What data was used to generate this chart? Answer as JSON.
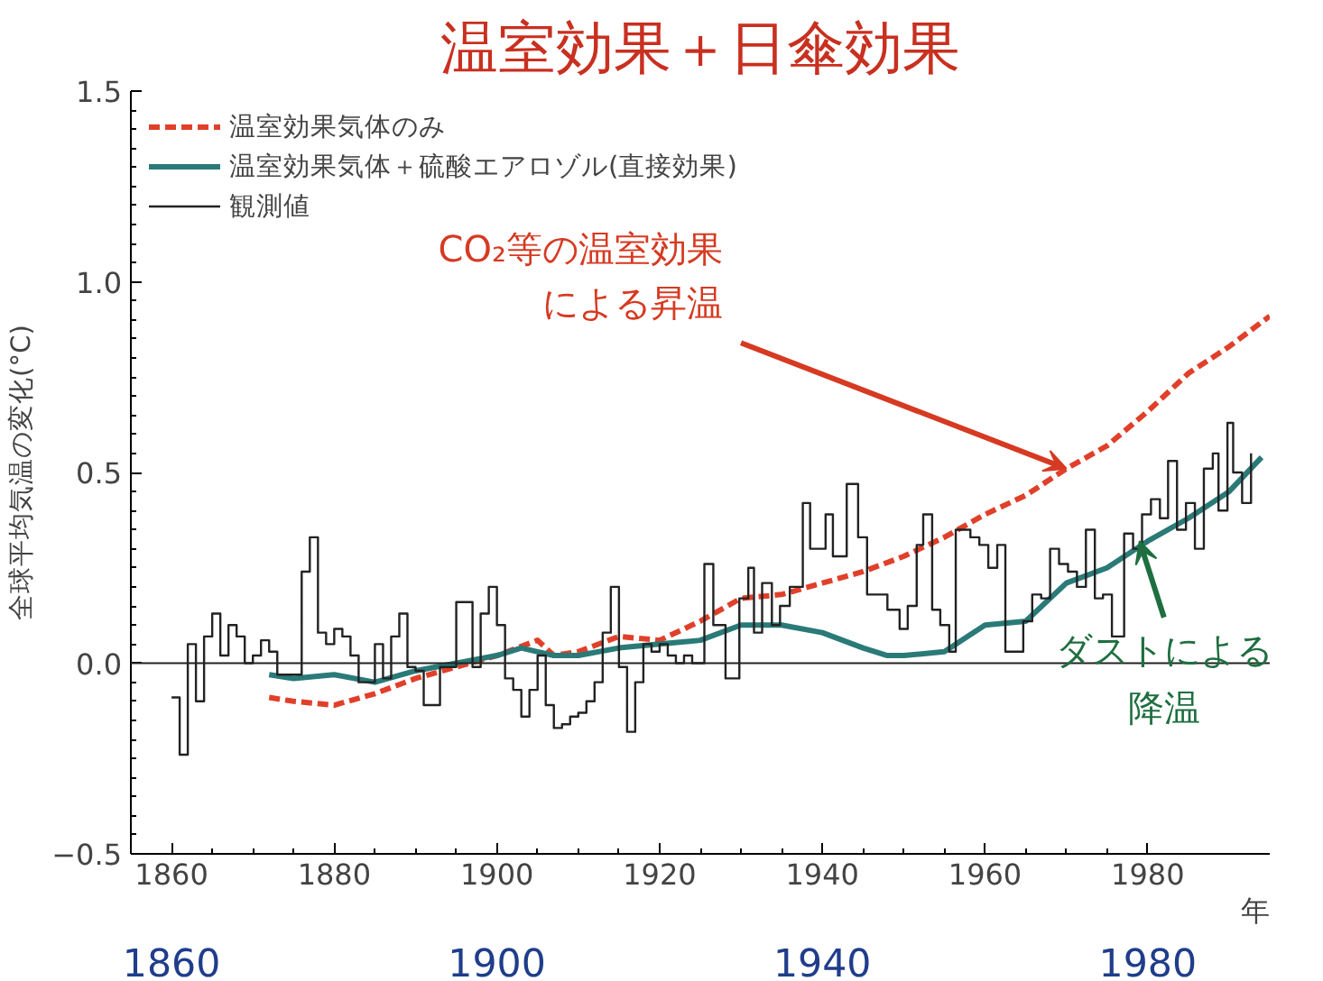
{
  "chart_data": {
    "type": "line",
    "title": "温室効果＋日傘効果",
    "ylabel": "全球平均気温の変化(°C)",
    "xlabel": "年",
    "xlim": [
      1855,
      1995
    ],
    "xticks": [
      1860,
      1880,
      1900,
      1920,
      1940,
      1960,
      1980
    ],
    "x2lim": [
      1855,
      1995
    ],
    "x2ticks": [
      1860,
      1900,
      1940,
      1980
    ],
    "ylim": [
      -0.5,
      1.5
    ],
    "yticks": [
      {
        "value": -0.5,
        "label": "−0.5"
      },
      {
        "value": 0,
        "label": "0.0"
      },
      {
        "value": 0.5,
        "label": "0.5"
      },
      {
        "value": 1.0,
        "label": "1.0"
      },
      {
        "value": 1.5,
        "label": "1.5"
      }
    ],
    "grid": false,
    "legend": "top left",
    "ref_lines": [
      {
        "axis": "y",
        "value": 0,
        "label": null,
        "color": "#222222"
      }
    ],
    "annotations": [
      {
        "text": "CO₂等の温室効果による昇温",
        "x": 1970,
        "y": 0.51
      },
      {
        "text": "ダストによる降温",
        "x": 1979,
        "y": 0.32
      }
    ],
    "series": [
      {
        "name": "温室効果気体のみ",
        "color": "#e0402a",
        "line_style": "dashed",
        "x": [
          1872,
          1875,
          1880,
          1885,
          1890,
          1895,
          1900,
          1905,
          1907,
          1910,
          1915,
          1920,
          1925,
          1930,
          1935,
          1940,
          1945,
          1950,
          1955,
          1960,
          1965,
          1970,
          1975,
          1980,
          1985,
          1990,
          1995
        ],
        "values": [
          -0.09,
          -0.1,
          -0.11,
          -0.08,
          -0.04,
          -0.01,
          0.02,
          0.06,
          0.02,
          0.03,
          0.07,
          0.06,
          0.11,
          0.17,
          0.18,
          0.21,
          0.24,
          0.28,
          0.33,
          0.39,
          0.44,
          0.51,
          0.57,
          0.66,
          0.76,
          0.83,
          0.91
        ]
      },
      {
        "name": "温室効果気体＋硫酸エアロゾル(直接効果)",
        "color": "#2a7a78",
        "line_style": "solid",
        "x": [
          1872,
          1875,
          1880,
          1885,
          1890,
          1895,
          1900,
          1903,
          1905,
          1907,
          1910,
          1915,
          1920,
          1925,
          1930,
          1935,
          1940,
          1945,
          1948,
          1950,
          1955,
          1960,
          1965,
          1970,
          1975,
          1980,
          1985,
          1990,
          1994
        ],
        "values": [
          -0.03,
          -0.04,
          -0.03,
          -0.05,
          -0.02,
          0.0,
          0.02,
          0.04,
          0.03,
          0.02,
          0.02,
          0.04,
          0.05,
          0.06,
          0.1,
          0.1,
          0.08,
          0.04,
          0.02,
          0.02,
          0.03,
          0.1,
          0.11,
          0.21,
          0.25,
          0.32,
          0.38,
          0.45,
          0.54
        ]
      },
      {
        "name": "観測値",
        "type": "step",
        "color": "#222222",
        "line_style": "solid",
        "x": [
          1860,
          1861,
          1862,
          1863,
          1864,
          1865,
          1866,
          1867,
          1868,
          1869,
          1870,
          1871,
          1872,
          1873,
          1874,
          1875,
          1876,
          1877,
          1878,
          1879,
          1880,
          1881,
          1882,
          1883,
          1884,
          1885,
          1886,
          1887,
          1888,
          1889,
          1890,
          1891,
          1892,
          1893,
          1894,
          1895,
          1896,
          1897,
          1898,
          1899,
          1900,
          1901,
          1902,
          1903,
          1904,
          1905,
          1906,
          1907,
          1908,
          1909,
          1910,
          1911,
          1912,
          1913,
          1914,
          1915,
          1916,
          1917,
          1918,
          1919,
          1920,
          1921,
          1922,
          1923,
          1924,
          1925.5,
          1926.6,
          1928.1,
          1929.8,
          1930.9,
          1931.6,
          1932.6,
          1933.8,
          1934.8,
          1936,
          1937.6,
          1938.5,
          1940.4,
          1941.3,
          1943,
          1944.4,
          1945.5,
          1946.9,
          1948,
          1949.5,
          1950.5,
          1951.6,
          1952.4,
          1953.5,
          1954.5,
          1955.6,
          1956.4,
          1958.2,
          1959.3,
          1960.4,
          1961.5,
          1962.5,
          1963.6,
          1964.7,
          1965.8,
          1966.9,
          1968,
          1969.1,
          1970.2,
          1971.3,
          1972.4,
          1973.5,
          1974.5,
          1975.6,
          1977.1,
          1978.2,
          1979.3,
          1980.4,
          1981.5,
          1982.5,
          1983.6,
          1984.7,
          1985.8,
          1986.9,
          1988,
          1988.7,
          1989.8,
          1990.5,
          1991.6,
          1992.7
        ],
        "values": [
          -0.09,
          -0.24,
          0.05,
          -0.1,
          0.07,
          0.13,
          0.02,
          0.1,
          0.07,
          0.0,
          0.02,
          0.06,
          0.03,
          -0.03,
          -0.03,
          -0.03,
          0.24,
          0.33,
          0.08,
          0.05,
          0.09,
          0.07,
          0.02,
          -0.05,
          -0.05,
          0.05,
          -0.04,
          0.07,
          0.13,
          -0.01,
          -0.02,
          -0.11,
          -0.11,
          -0.01,
          -0.01,
          0.16,
          0.16,
          -0.01,
          0.13,
          0.2,
          0.1,
          -0.04,
          -0.07,
          -0.14,
          -0.07,
          0.02,
          -0.11,
          -0.17,
          -0.16,
          -0.14,
          -0.13,
          -0.1,
          -0.05,
          0.08,
          0.2,
          -0.01,
          -0.18,
          -0.05,
          0.05,
          0.03,
          0.05,
          0.02,
          0.0,
          0.02,
          0.0,
          0.26,
          0.1,
          -0.04,
          0.17,
          0.25,
          0.08,
          0.21,
          0.1,
          0.15,
          0.2,
          0.42,
          0.3,
          0.39,
          0.28,
          0.47,
          0.33,
          0.18,
          0.18,
          0.14,
          0.09,
          0.15,
          0.31,
          0.39,
          0.14,
          0.1,
          0.03,
          0.35,
          0.33,
          0.31,
          0.25,
          0.31,
          0.03,
          0.03,
          0.11,
          0.18,
          0.17,
          0.3,
          0.26,
          0.24,
          0.2,
          0.35,
          0.17,
          0.18,
          0.07,
          0.34,
          0.3,
          0.39,
          0.43,
          0.38,
          0.53,
          0.35,
          0.42,
          0.3,
          0.51,
          0.55,
          0.4,
          0.63,
          0.5,
          0.42,
          0.55
        ]
      }
    ]
  }
}
